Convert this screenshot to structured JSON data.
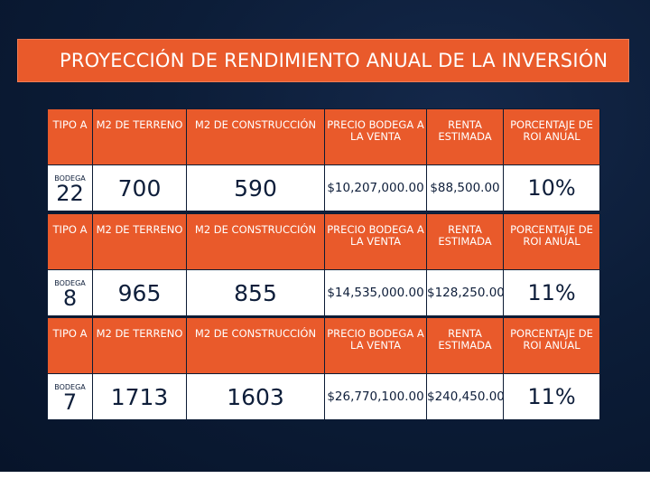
{
  "title": "PROYECCIÓN DE RENDIMIENTO ANUAL DE LA INVERSIÓN",
  "headers": {
    "tipo": "TIPO A",
    "terreno": "M2 DE TERRENO",
    "construccion": "M2 DE CONSTRUCCIÓN",
    "precio": "PRECIO BODEGA A LA VENTA",
    "renta": "RENTA ESTIMADA",
    "roi": "PORCENTAJE DE ROI ANUAL"
  },
  "tables": [
    {
      "bodega_label": "BODEGA",
      "bodega_number": "22",
      "terreno": "700",
      "construccion": "590",
      "precio": "$10,207,000.00",
      "renta": "$88,500.00",
      "roi": "10%"
    },
    {
      "bodega_label": "BODEGA",
      "bodega_number": "8",
      "terreno": "965",
      "construccion": "855",
      "precio": "$14,535,000.00",
      "renta": "$128,250.00",
      "roi": "11%"
    },
    {
      "bodega_label": "BODEGA",
      "bodega_number": "7",
      "terreno": "1713",
      "construccion": "1603",
      "precio": "$26,770,100.00",
      "renta": "$240,450.00",
      "roi": "11%"
    }
  ],
  "colors": {
    "accent": "#e95a2b",
    "background": "#0c1d38",
    "cell": "#ffffff",
    "text_dark": "#0e1e3a"
  }
}
